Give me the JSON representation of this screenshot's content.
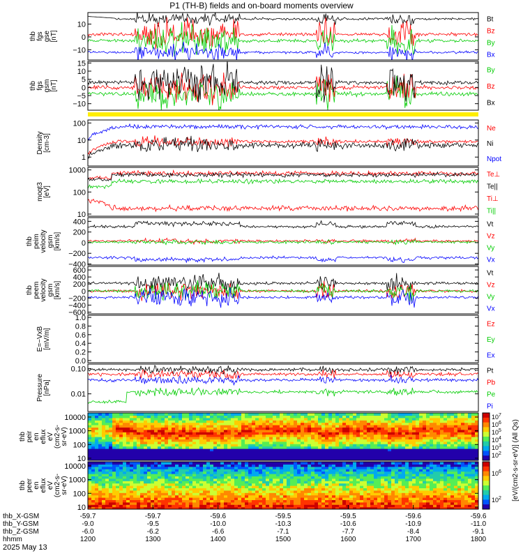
{
  "title": "P1 (TH-B) fields and on-board moments overview",
  "chart_data": {
    "type": "line",
    "title": "P1 (TH-B) fields and on-board moments overview",
    "date": "2025 May 13",
    "time_range_hhmm": [
      "1200",
      "1800"
    ],
    "x_tick_rows": [
      {
        "label": "thb_X-GSM",
        "values": [
          "-59.7",
          "-59.7",
          "-59.6",
          "-59.5",
          "-59.5",
          "-59.6",
          "-59.6"
        ]
      },
      {
        "label": "thb_Y-GSM",
        "values": [
          "-9.0",
          "-9.5",
          "-10.0",
          "-10.3",
          "-10.6",
          "-10.9",
          "-11.0"
        ]
      },
      {
        "label": "thb_Z-GSM",
        "values": [
          "-6.0",
          "-6.2",
          "-6.6",
          "-7.1",
          "-7.7",
          "-8.4",
          "-9.1"
        ]
      },
      {
        "label": "hhmm",
        "values": [
          "1200",
          "1300",
          "1400",
          "1500",
          "1600",
          "1700",
          "1800"
        ]
      }
    ],
    "panels": [
      {
        "id": "fgs_gse",
        "ylabel": [
          "thb",
          "fgs",
          "gse",
          "[nT]"
        ],
        "scale": "linear",
        "ylim": [
          -18,
          19
        ],
        "yticks": [
          -10,
          0,
          10
        ],
        "ytick_labels": [
          "−10",
          "0",
          "10"
        ],
        "series": [
          {
            "name": "Bt",
            "color": "#000000"
          },
          {
            "name": "Bz",
            "color": "#ff0000"
          },
          {
            "name": "By",
            "color": "#00cc00"
          },
          {
            "name": "Bx",
            "color": "#0000ff"
          }
        ]
      },
      {
        "id": "fgs_gsm",
        "ylabel": [
          "thb",
          "fgs",
          "gsm",
          "[nT]"
        ],
        "scale": "linear",
        "ylim": [
          -14,
          16
        ],
        "yticks": [
          -10,
          -5,
          0,
          5,
          10,
          15
        ],
        "ytick_labels": [
          "−10",
          "−5",
          "0",
          "5",
          "10",
          "15"
        ],
        "series": [
          {
            "name": "By",
            "color": "#00cc00"
          },
          {
            "name": "Bz",
            "color": "#ff0000"
          },
          {
            "name": "Bx",
            "color": "#000000"
          }
        ]
      },
      {
        "id": "density",
        "ylabel": [
          "Density",
          "[cm-3]"
        ],
        "scale": "log",
        "ylim": [
          0.3,
          150
        ],
        "yticks": [
          1,
          10,
          100
        ],
        "ytick_labels": [
          "1",
          "10",
          "100"
        ],
        "series": [
          {
            "name": "Ne",
            "color": "#ff0000"
          },
          {
            "name": "Ni",
            "color": "#000000"
          },
          {
            "name": "Npot",
            "color": "#0000ff"
          }
        ]
      },
      {
        "id": "temperature",
        "ylabel": [
          "moqt3",
          "[eV]"
        ],
        "scale": "log",
        "ylim": [
          8,
          1300
        ],
        "yticks": [
          10,
          100,
          1000
        ],
        "ytick_labels": [
          "10",
          "100",
          "1000"
        ],
        "series": [
          {
            "name": "Te⊥",
            "color": "#ff0000"
          },
          {
            "name": "Te||",
            "color": "#000000"
          },
          {
            "name": "Ti⊥",
            "color": "#ff0000"
          },
          {
            "name": "Ti||",
            "color": "#00cc00"
          }
        ]
      },
      {
        "id": "peim_velocity",
        "ylabel": [
          "thb",
          "peim",
          "velocity",
          "gsm",
          "[km/s]"
        ],
        "scale": "linear",
        "ylim": [
          -420,
          470
        ],
        "yticks": [
          -400,
          -200,
          0,
          200,
          400
        ],
        "ytick_labels": [
          "−400",
          "−200",
          "0",
          "200",
          "400"
        ],
        "series": [
          {
            "name": "Vt",
            "color": "#000000"
          },
          {
            "name": "Vz",
            "color": "#ff0000"
          },
          {
            "name": "Vy",
            "color": "#00cc00"
          },
          {
            "name": "Vx",
            "color": "#0000ff"
          }
        ]
      },
      {
        "id": "peem_velocity",
        "ylabel": [
          "thb",
          "peem",
          "velocity",
          "gsm",
          "[km/s]"
        ],
        "scale": "linear",
        "ylim": [
          -650,
          700
        ],
        "yticks": [
          -600,
          -400,
          -200,
          0,
          200,
          400,
          600
        ],
        "ytick_labels": [
          "−600",
          "−400",
          "−200",
          "0",
          "200",
          "400",
          "600"
        ],
        "series": [
          {
            "name": "Vt",
            "color": "#000000"
          },
          {
            "name": "Vz",
            "color": "#ff0000"
          },
          {
            "name": "Vy",
            "color": "#00cc00"
          },
          {
            "name": "Vx",
            "color": "#0000ff"
          }
        ]
      },
      {
        "id": "efield",
        "ylabel": [
          "E=−VxB",
          "[mV/m]"
        ],
        "scale": "linear",
        "ylim": [
          -0.05,
          1.05
        ],
        "yticks": [
          0,
          0.2,
          0.4,
          0.6,
          0.8,
          1.0
        ],
        "ytick_labels": [
          "0.0",
          "0.2",
          "0.4",
          "0.6",
          "0.8",
          "1.0"
        ],
        "series": [
          {
            "name": "Ez",
            "color": "#ff0000"
          },
          {
            "name": "Ey",
            "color": "#00cc00"
          },
          {
            "name": "Ex",
            "color": "#0000ff"
          }
        ]
      },
      {
        "id": "pressure",
        "ylabel": [
          "Pressure",
          "[nPa]"
        ],
        "scale": "log",
        "ylim": [
          0.002,
          0.15
        ],
        "yticks": [
          0.01,
          0.1
        ],
        "ytick_labels": [
          "0.01",
          "0.10"
        ],
        "series": [
          {
            "name": "Pt",
            "color": "#000000"
          },
          {
            "name": "Pb",
            "color": "#ff0000"
          },
          {
            "name": "Pe",
            "color": "#00cc00"
          },
          {
            "name": "Pi",
            "color": "#0000ff"
          }
        ]
      },
      {
        "id": "peir",
        "ylabel": [
          "thb",
          "peir",
          "en",
          "eflux",
          "eV",
          "(cm2-s-",
          "sr-eV)"
        ],
        "scale": "log",
        "ylim": [
          7,
          20000
        ],
        "yticks": [
          10,
          100,
          1000,
          10000
        ],
        "ytick_labels": [
          "10",
          "100",
          "1000",
          "10000"
        ],
        "type": "spectrogram"
      },
      {
        "id": "peer",
        "ylabel": [
          "thb",
          "peer",
          "en",
          "eflux",
          "eV",
          "(cm2-s-",
          "sr-eV)"
        ],
        "scale": "log",
        "ylim": [
          7,
          20000
        ],
        "yticks": [
          10,
          100,
          1000,
          10000
        ],
        "ytick_labels": [
          "10",
          "100",
          "1000",
          "10000"
        ],
        "type": "spectrogram"
      }
    ],
    "colorbar": {
      "label": "[eV/(cm2-s-sr-eV)] (All Qs)",
      "top_ticks": [
        "10",
        "10",
        "10",
        "10",
        "10",
        "10"
      ],
      "top_exponents": [
        "7",
        "6",
        "5",
        "4",
        "3",
        "2"
      ],
      "bottom_ticks": [
        "10",
        "10"
      ],
      "bottom_exponents": [
        "6",
        "2"
      ]
    }
  }
}
